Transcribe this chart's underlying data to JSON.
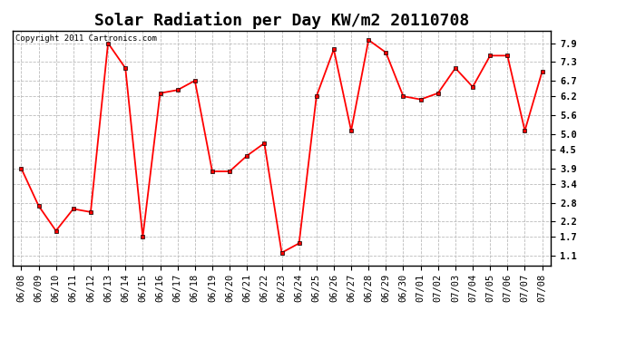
{
  "title": "Solar Radiation per Day KW/m2 20110708",
  "copyright": "Copyright 2011 Cartronics.com",
  "x_labels": [
    "06/08",
    "06/09",
    "06/10",
    "06/11",
    "06/12",
    "06/13",
    "06/14",
    "06/15",
    "06/16",
    "06/17",
    "06/18",
    "06/19",
    "06/20",
    "06/21",
    "06/22",
    "06/23",
    "06/24",
    "06/25",
    "06/26",
    "06/27",
    "06/28",
    "06/29",
    "06/30",
    "07/01",
    "07/02",
    "07/03",
    "07/04",
    "07/05",
    "07/06",
    "07/07",
    "07/08"
  ],
  "y_values": [
    3.9,
    2.7,
    1.9,
    2.6,
    2.5,
    7.9,
    7.1,
    1.7,
    6.3,
    6.4,
    6.7,
    3.8,
    3.8,
    4.3,
    4.7,
    1.2,
    1.5,
    6.2,
    7.7,
    5.1,
    8.0,
    7.6,
    6.2,
    6.1,
    6.3,
    7.1,
    6.5,
    7.5,
    7.5,
    5.1,
    7.0
  ],
  "y_ticks": [
    1.1,
    1.7,
    2.2,
    2.8,
    3.4,
    3.9,
    4.5,
    5.0,
    5.6,
    6.2,
    6.7,
    7.3,
    7.9
  ],
  "line_color": "red",
  "marker": "s",
  "marker_size": 2.5,
  "bg_color": "#ffffff",
  "plot_bg": "#ffffff",
  "grid_color": "#bbbbbb",
  "title_fontsize": 13,
  "copyright_fontsize": 6.5,
  "tick_fontsize": 7.5,
  "ylim": [
    0.8,
    8.3
  ],
  "xlim": [
    -0.5,
    30.5
  ]
}
